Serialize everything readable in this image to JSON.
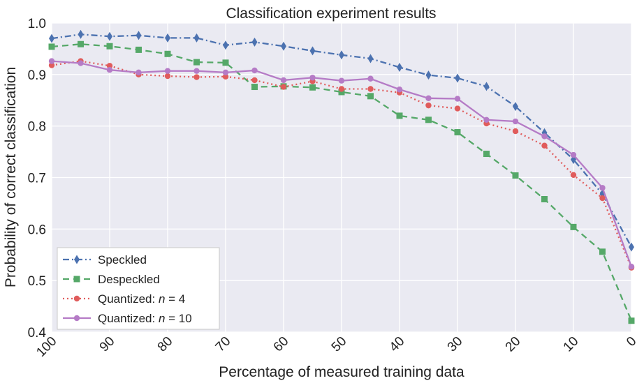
{
  "chart_data": {
    "type": "line",
    "title": "Classification experiment results",
    "xlabel": "Percentage of measured training data",
    "ylabel": "Probability of correct classification",
    "xlim": [
      100,
      0
    ],
    "ylim": [
      0.4,
      1.0
    ],
    "x_ticks": [
      "100",
      "90",
      "80",
      "70",
      "60",
      "50",
      "40",
      "30",
      "20",
      "10",
      "0"
    ],
    "y_ticks": [
      "0.4",
      "0.5",
      "0.6",
      "0.7",
      "0.8",
      "0.9",
      "1.0"
    ],
    "grid": true,
    "legend_position": "bottom-left",
    "x": [
      100,
      95,
      90,
      85,
      80,
      75,
      70,
      65,
      60,
      55,
      50,
      45,
      40,
      35,
      30,
      25,
      20,
      15,
      10,
      5,
      0
    ],
    "series": [
      {
        "name": "Speckled",
        "color": "#4c72b0",
        "marker": "diamond",
        "dash": "dashdot",
        "values": [
          0.97,
          0.978,
          0.974,
          0.976,
          0.971,
          0.971,
          0.957,
          0.963,
          0.955,
          0.946,
          0.938,
          0.931,
          0.914,
          0.899,
          0.893,
          0.877,
          0.838,
          0.787,
          0.735,
          0.668,
          0.565
        ]
      },
      {
        "name": "Despeckled",
        "color": "#55a868",
        "marker": "square",
        "dash": "dashed",
        "values": [
          0.954,
          0.959,
          0.955,
          0.948,
          0.94,
          0.924,
          0.923,
          0.876,
          0.877,
          0.875,
          0.866,
          0.858,
          0.82,
          0.812,
          0.788,
          0.746,
          0.704,
          0.658,
          0.604,
          0.556,
          0.422
        ]
      },
      {
        "name": "Quantized: n = 4",
        "color": "#e05c5c",
        "marker": "circle",
        "dash": "dotted",
        "values": [
          0.918,
          0.926,
          0.917,
          0.9,
          0.897,
          0.895,
          0.896,
          0.889,
          0.876,
          0.887,
          0.872,
          0.872,
          0.865,
          0.84,
          0.834,
          0.805,
          0.79,
          0.762,
          0.705,
          0.66,
          0.525
        ]
      },
      {
        "name": "Quantized: n = 10",
        "color": "#b57bc6",
        "marker": "circle",
        "dash": "solid",
        "values": [
          0.926,
          0.922,
          0.909,
          0.904,
          0.907,
          0.907,
          0.904,
          0.908,
          0.889,
          0.894,
          0.888,
          0.892,
          0.871,
          0.854,
          0.853,
          0.812,
          0.809,
          0.78,
          0.744,
          0.68,
          0.527
        ]
      }
    ],
    "legend": [
      {
        "label": "Speckled"
      },
      {
        "label": "Despeckled"
      },
      {
        "label_prefix": "Quantized: ",
        "label_var": "n",
        "label_suffix": " = 4"
      },
      {
        "label_prefix": "Quantized: ",
        "label_var": "n",
        "label_suffix": " = 10"
      }
    ]
  }
}
